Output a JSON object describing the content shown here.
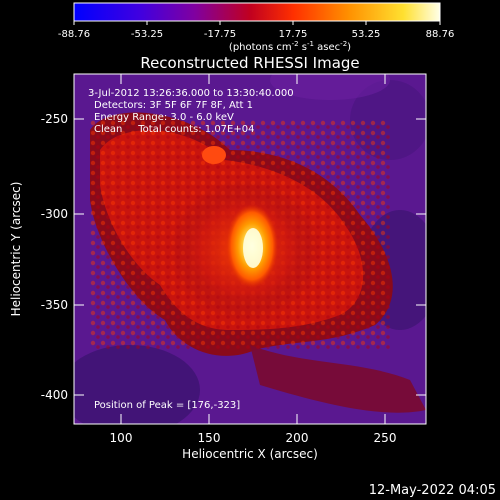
{
  "colorbar": {
    "tick_labels": [
      "-88.76",
      "-53.25",
      "-17.75",
      "17.75",
      "53.25",
      "88.76"
    ],
    "unit_prefix": "(photons cm",
    "unit_exp1": "-2",
    "unit_mid": " s",
    "unit_exp2": "-1",
    "unit_mid2": " asec",
    "unit_exp3": "-2",
    "unit_suffix": ")",
    "colors": [
      "#0000ff",
      "#6a00a8",
      "#c00000",
      "#ff3000",
      "#ff9b00",
      "#ffff9c",
      "#ffffff"
    ]
  },
  "plot": {
    "title": "Reconstructed RHESSI Image",
    "annotations": [
      "3-Jul-2012 13:26:36.000 to 13:30:40.000",
      "Detectors: 3F 5F 6F 7F 8F, Att 1",
      "Energy Range: 3.0 - 6.0 keV",
      "Clean     Total counts: 1.07E+04"
    ],
    "peak_label": "Position of Peak = [176,-323]",
    "xlabel": "Heliocentric X (arcsec)",
    "ylabel": "Heliocentric Y (arcsec)",
    "x_ticks": [
      "100",
      "150",
      "200",
      "250"
    ],
    "y_ticks": [
      "-250",
      "-300",
      "-350",
      "-400"
    ],
    "palette": {
      "background_purple": "#5a1890",
      "deep_purple": "#3c1470",
      "dark_red": "#8a0a1a",
      "red": "#d01a10",
      "orange": "#ff6a00",
      "yellow": "#ffe85a",
      "white_core": "#ffffe0"
    }
  },
  "footer": {
    "timestamp": "12-May-2022 04:05"
  }
}
